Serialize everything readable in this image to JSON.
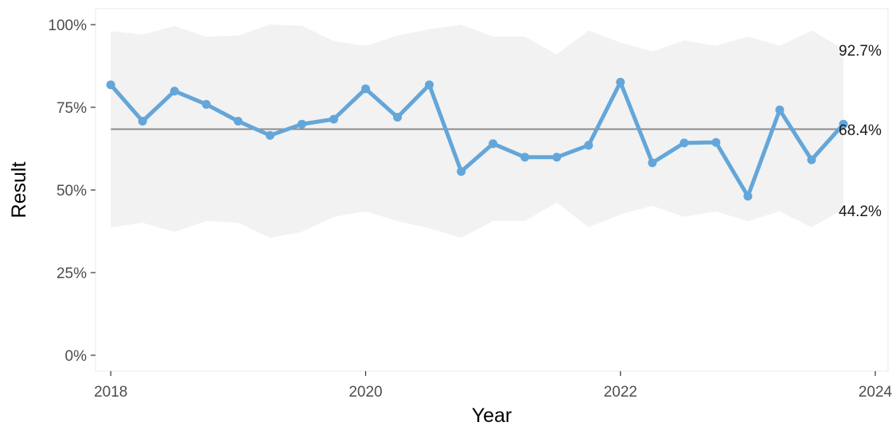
{
  "chart_data": {
    "type": "line",
    "xlabel": "Year",
    "ylabel": "Result",
    "xlim": [
      2017.88,
      2024.1
    ],
    "ylim": [
      0,
      100
    ],
    "x_ticks": [
      2018,
      2020,
      2022,
      2024
    ],
    "y_ticks": [
      {
        "value": 0,
        "label": "0%"
      },
      {
        "value": 25,
        "label": "25%"
      },
      {
        "value": 50,
        "label": "50%"
      },
      {
        "value": 75,
        "label": "75%"
      },
      {
        "value": 100,
        "label": "100%"
      }
    ],
    "grid": false,
    "series": [
      {
        "x": [
          2018.0,
          2018.25,
          2018.5,
          2018.75,
          2019.0,
          2019.25,
          2019.5,
          2019.75,
          2020.0,
          2020.25,
          2020.5,
          2020.75,
          2021.0,
          2021.25,
          2021.5,
          2021.75,
          2022.0,
          2022.25,
          2022.5,
          2022.75,
          2023.0,
          2023.25,
          2023.5,
          2023.75
        ],
        "values": [
          81.8,
          70.8,
          79.9,
          75.9,
          70.8,
          66.5,
          69.9,
          71.4,
          80.6,
          72.0,
          81.8,
          55.6,
          64.0,
          59.9,
          59.9,
          63.5,
          82.6,
          58.2,
          64.2,
          64.4,
          48.1,
          74.2,
          59.1,
          69.9
        ],
        "color": "#64a6d9"
      }
    ],
    "center_line": {
      "value": 68.4,
      "label": "68.4%",
      "color": "#8c8c8c"
    },
    "band": {
      "upper": [
        98.0,
        97.0,
        99.6,
        96.4,
        96.7,
        100.0,
        99.7,
        95.0,
        93.6,
        96.7,
        98.6,
        100.0,
        96.4,
        96.4,
        91.0,
        98.2,
        94.6,
        91.9,
        95.2,
        93.6,
        96.4,
        93.6,
        98.2,
        92.7
      ],
      "lower": [
        38.7,
        40.1,
        37.3,
        40.6,
        40.1,
        35.5,
        37.3,
        41.9,
        43.5,
        40.6,
        38.4,
        35.5,
        40.6,
        40.6,
        46.2,
        38.7,
        42.6,
        45.2,
        41.9,
        43.5,
        40.6,
        43.5,
        38.7,
        44.2
      ],
      "upper_label": "92.7%",
      "lower_label": "44.2%",
      "color": "#f2f2f2"
    }
  }
}
